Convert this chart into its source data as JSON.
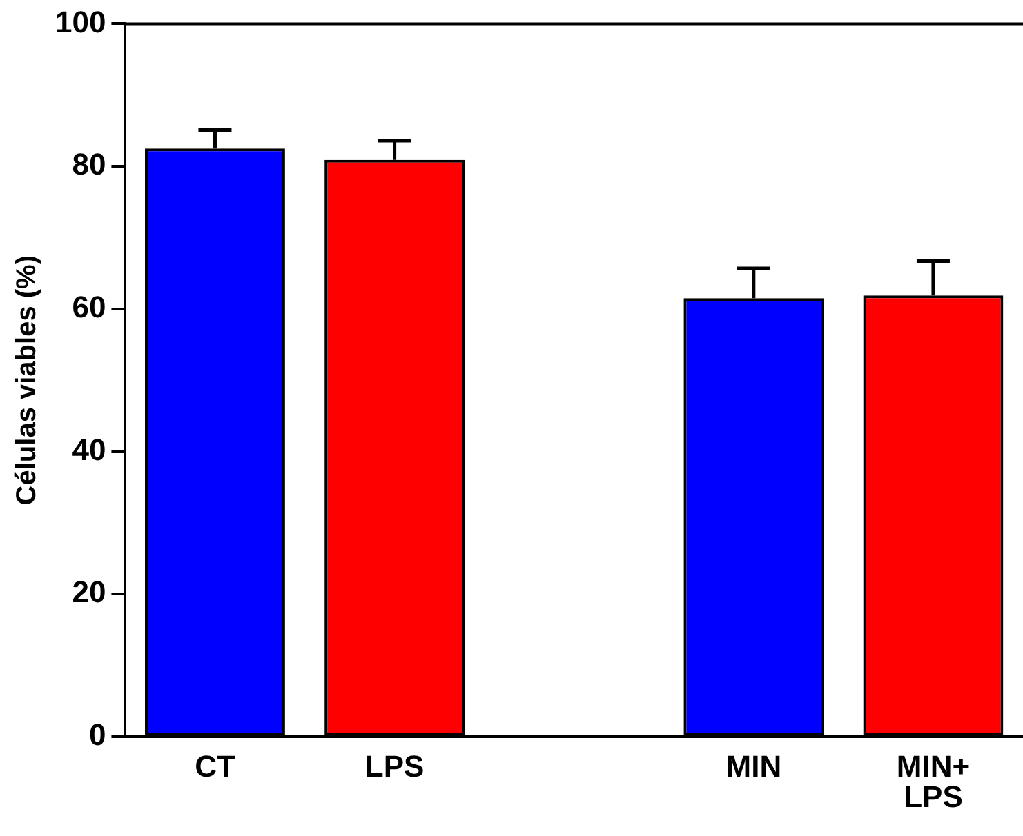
{
  "chart_data": {
    "type": "bar",
    "ylabel": "Células viables (%)",
    "categories": [
      "CT",
      "LPS",
      null,
      "MIN",
      "MIN+ LPS"
    ],
    "values": [
      82.5,
      80.9,
      null,
      61.5,
      61.9
    ],
    "colors": [
      "#0000ff",
      "#ff0000",
      null,
      "#0000ff",
      "#ff0000"
    ],
    "errors": [
      [
        82.5,
        85.1
      ],
      [
        80.9,
        83.6
      ],
      null,
      [
        61.5,
        65.7
      ],
      [
        61.9,
        66.7
      ]
    ],
    "ylim": [
      0,
      100
    ],
    "yticks": [
      0,
      20,
      40,
      60,
      80,
      100
    ],
    "grid": false,
    "legend": false
  }
}
